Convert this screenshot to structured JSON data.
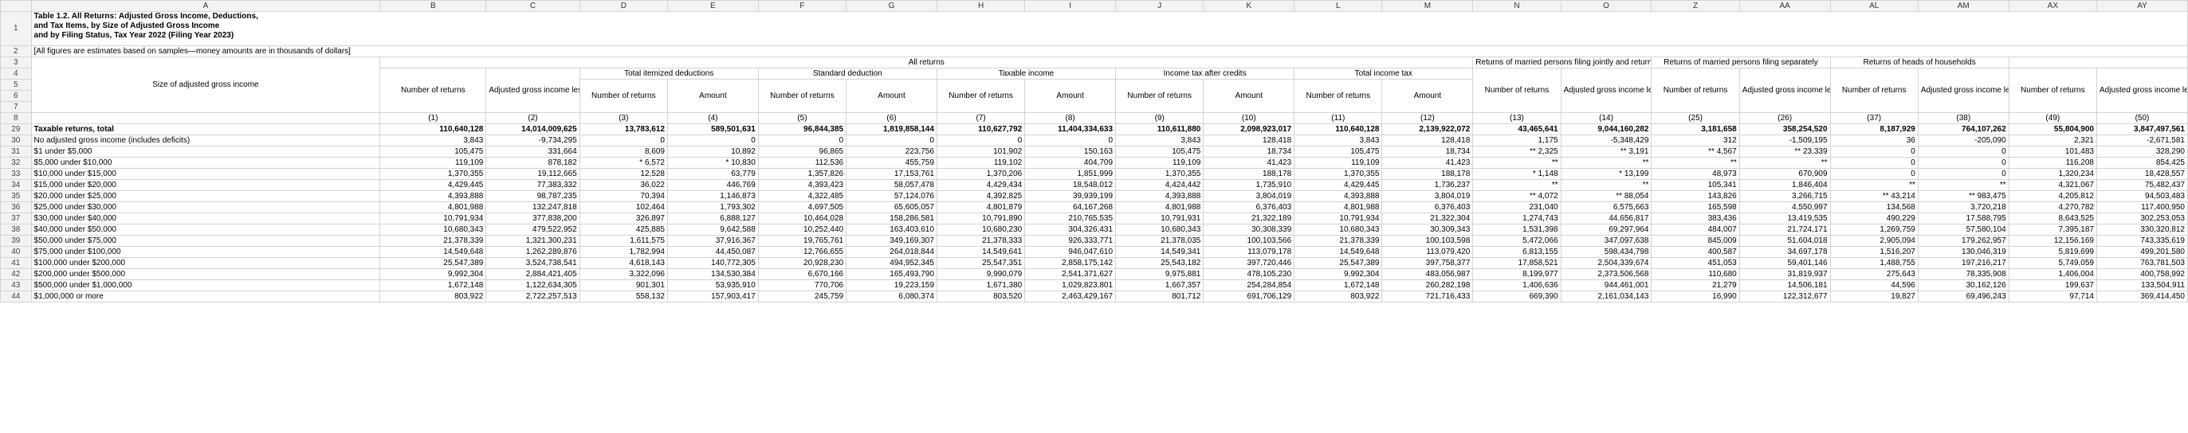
{
  "columns": [
    "A",
    "B",
    "C",
    "D",
    "E",
    "F",
    "G",
    "H",
    "I",
    "J",
    "K",
    "L",
    "M",
    "N",
    "O",
    "Z",
    "AA",
    "AL",
    "AM",
    "AX",
    "AY"
  ],
  "title_lines": [
    "Table 1.2.  All Returns: Adjusted Gross Income, Deductions,",
    "and Tax Items, by Size of Adjusted Gross Income",
    "and by Filing Status, Tax Year 2022 (Filing Year 2023)"
  ],
  "note": "[All figures are estimates based on samples—money amounts are in thousands of dollars]",
  "headers": {
    "size_label": "Size of adjusted gross income",
    "all_returns": "All returns",
    "joint": "Returns of married persons filing jointly and returns of surviving spouses",
    "separate": "Returns of married persons filing separately",
    "heads": "Returns of heads of households",
    "total_itemized": "Total itemized deductions",
    "standard": "Standard deduction",
    "taxable_income": "Taxable income",
    "income_tax_after_credits": "Income tax after credits",
    "total_income_tax": "Total income tax",
    "number_of_returns": "Number of returns",
    "agi_less_deficit": "Adjusted gross income less deficit",
    "amount": "Amount"
  },
  "col_numbers": [
    "(1)",
    "(2)",
    "(3)",
    "(4)",
    "(5)",
    "(6)",
    "(7)",
    "(8)",
    "(9)",
    "(10)",
    "(11)",
    "(12)",
    "(13)",
    "(14)",
    "(25)",
    "(26)",
    "(37)",
    "(38)",
    "(49)",
    "(50)"
  ],
  "rows": [
    {
      "n": "29",
      "label": "Taxable returns, total",
      "bold": true,
      "v": [
        "110,640,128",
        "14,014,009,625",
        "13,783,612",
        "589,501,631",
        "96,844,385",
        "1,819,858,144",
        "110,627,792",
        "11,404,334,633",
        "110,611,880",
        "2,098,923,017",
        "110,640,128",
        "2,139,922,072",
        "43,465,641",
        "9,044,160,282",
        "3,181,658",
        "358,254,520",
        "8,187,929",
        "764,107,262",
        "55,804,900",
        "3,847,497,561"
      ]
    },
    {
      "n": "30",
      "label": "No adjusted gross income (includes deficits)",
      "v": [
        "3,843",
        "-9,734,295",
        "0",
        "0",
        "0",
        "0",
        "0",
        "0",
        "3,843",
        "128,418",
        "3,843",
        "128,418",
        "1,175",
        "-5,348,429",
        "312",
        "-1,509,195",
        "36",
        "-205,090",
        "2,321",
        "-2,671,581"
      ]
    },
    {
      "n": "31",
      "label": "$1 under $5,000",
      "v": [
        "105,475",
        "331,664",
        "8,609",
        "10,892",
        "96,865",
        "223,756",
        "101,902",
        "150,163",
        "105,475",
        "18,734",
        "105,475",
        "18,734",
        "** 2,325",
        "** 3,191",
        "** 4,567",
        "** 23,339",
        "0",
        "0",
        "101,483",
        "328,290"
      ]
    },
    {
      "n": "32",
      "label": "$5,000 under $10,000",
      "v": [
        "119,109",
        "878,182",
        "* 6,572",
        "* 10,830",
        "112,536",
        "455,759",
        "119,102",
        "404,709",
        "119,109",
        "41,423",
        "119,109",
        "41,423",
        "**",
        "**",
        "**",
        "**",
        "0",
        "0",
        "116,208",
        "854,425"
      ]
    },
    {
      "n": "33",
      "label": "$10,000 under $15,000",
      "v": [
        "1,370,355",
        "19,112,665",
        "12,528",
        "63,779",
        "1,357,826",
        "17,153,761",
        "1,370,206",
        "1,851,999",
        "1,370,355",
        "188,178",
        "1,370,355",
        "188,178",
        "* 1,148",
        "* 13,199",
        "48,973",
        "670,909",
        "0",
        "0",
        "1,320,234",
        "18,428,557"
      ]
    },
    {
      "n": "34",
      "label": "$15,000 under $20,000",
      "v": [
        "4,429,445",
        "77,383,332",
        "36,022",
        "446,769",
        "4,393,423",
        "58,057,478",
        "4,429,434",
        "18,548,012",
        "4,424,442",
        "1,735,910",
        "4,429,445",
        "1,736,237",
        "**",
        "**",
        "105,341",
        "1,846,404",
        "**",
        "**",
        "4,321,067",
        "75,482,437"
      ]
    },
    {
      "n": "35",
      "label": "$20,000 under $25,000",
      "v": [
        "4,393,888",
        "98,787,235",
        "70,394",
        "1,146,873",
        "4,322,485",
        "57,124,076",
        "4,392,825",
        "39,939,199",
        "4,393,888",
        "3,804,019",
        "4,393,888",
        "3,804,019",
        "** 4,072",
        "** 88,054",
        "143,826",
        "3,266,715",
        "** 43,214",
        "** 983,475",
        "4,205,812",
        "94,503,483"
      ]
    },
    {
      "n": "36",
      "label": "$25,000 under $30,000",
      "v": [
        "4,801,988",
        "132,247,818",
        "102,464",
        "1,793,302",
        "4,697,505",
        "65,605,057",
        "4,801,879",
        "64,167,268",
        "4,801,988",
        "6,376,403",
        "4,801,988",
        "6,376,403",
        "231,040",
        "6,575,663",
        "165,598",
        "4,550,997",
        "134,568",
        "3,720,218",
        "4,270,782",
        "117,400,950"
      ]
    },
    {
      "n": "37",
      "label": "$30,000 under $40,000",
      "v": [
        "10,791,934",
        "377,838,200",
        "326,897",
        "6,888,127",
        "10,464,028",
        "158,286,581",
        "10,791,890",
        "210,765,535",
        "10,791,931",
        "21,322,189",
        "10,791,934",
        "21,322,304",
        "1,274,743",
        "44,656,817",
        "383,436",
        "13,419,535",
        "490,229",
        "17,588,795",
        "8,643,525",
        "302,253,053"
      ]
    },
    {
      "n": "38",
      "label": "$40,000 under $50,000",
      "v": [
        "10,680,343",
        "479,522,952",
        "425,885",
        "9,642,588",
        "10,252,440",
        "163,403,610",
        "10,680,230",
        "304,326,431",
        "10,680,343",
        "30,308,339",
        "10,680,343",
        "30,309,343",
        "1,531,398",
        "69,297,964",
        "484,007",
        "21,724,171",
        "1,269,759",
        "57,580,104",
        "7,395,187",
        "330,320,812"
      ]
    },
    {
      "n": "39",
      "label": "$50,000 under $75,000",
      "v": [
        "21,378,339",
        "1,321,300,231",
        "1,611,575",
        "37,916,367",
        "19,765,761",
        "349,169,307",
        "21,378,333",
        "926,333,771",
        "21,378,035",
        "100,103,566",
        "21,378,339",
        "100,103,598",
        "5,472,066",
        "347,097,638",
        "845,009",
        "51,604,018",
        "2,905,094",
        "179,262,957",
        "12,156,169",
        "743,335,619"
      ]
    },
    {
      "n": "40",
      "label": "$75,000 under $100,000",
      "v": [
        "14,549,648",
        "1,262,289,876",
        "1,782,994",
        "44,450,087",
        "12,766,655",
        "264,018,844",
        "14,549,641",
        "946,047,610",
        "14,549,341",
        "113,079,178",
        "14,549,648",
        "113,079,420",
        "6,813,155",
        "598,434,798",
        "400,587",
        "34,697,178",
        "1,516,207",
        "130,046,319",
        "5,819,699",
        "499,201,580"
      ]
    },
    {
      "n": "41",
      "label": "$100,000 under $200,000",
      "v": [
        "25,547,389",
        "3,524,738,541",
        "4,618,143",
        "140,772,305",
        "20,928,230",
        "494,952,345",
        "25,547,351",
        "2,858,175,142",
        "25,543,182",
        "397,720,446",
        "25,547,389",
        "397,758,377",
        "17,858,521",
        "2,504,339,674",
        "451,053",
        "59,401,146",
        "1,488,755",
        "197,216,217",
        "5,749,059",
        "763,781,503"
      ]
    },
    {
      "n": "42",
      "label": "$200,000 under $500,000",
      "v": [
        "9,992,304",
        "2,884,421,405",
        "3,322,096",
        "134,530,384",
        "6,670,166",
        "165,493,790",
        "9,990,079",
        "2,541,371,627",
        "9,975,881",
        "478,105,230",
        "9,992,304",
        "483,056,987",
        "8,199,977",
        "2,373,506,568",
        "110,680",
        "31,819,937",
        "275,643",
        "78,335,908",
        "1,406,004",
        "400,758,992"
      ]
    },
    {
      "n": "43",
      "label": "$500,000 under $1,000,000",
      "v": [
        "1,672,148",
        "1,122,634,305",
        "901,301",
        "53,935,910",
        "770,706",
        "19,223,159",
        "1,671,380",
        "1,029,823,801",
        "1,667,357",
        "254,284,854",
        "1,672,148",
        "260,282,198",
        "1,406,636",
        "944,461,001",
        "21,279",
        "14,506,181",
        "44,596",
        "30,162,126",
        "199,637",
        "133,504,911"
      ]
    },
    {
      "n": "44",
      "label": "$1,000,000 or more",
      "v": [
        "803,922",
        "2,722,257,513",
        "558,132",
        "157,903,417",
        "245,759",
        "6,080,374",
        "803,520",
        "2,463,429,167",
        "801,712",
        "691,706,129",
        "803,922",
        "721,716,433",
        "669,390",
        "2,161,034,143",
        "16,990",
        "122,312,677",
        "19,827",
        "69,496,243",
        "97,714",
        "369,414,450"
      ]
    }
  ]
}
